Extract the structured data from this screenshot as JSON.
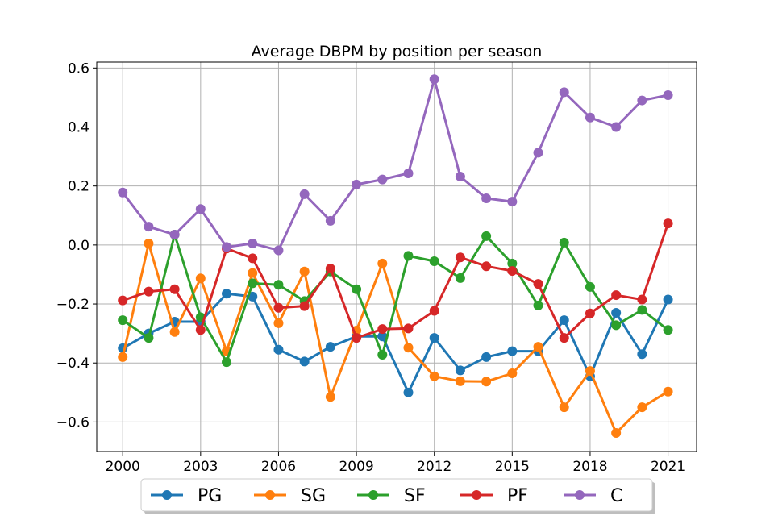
{
  "chart_data": {
    "type": "line",
    "title": "Average DBPM by position per season",
    "xlabel": "",
    "ylabel": "",
    "x": [
      2000,
      2001,
      2002,
      2003,
      2004,
      2005,
      2006,
      2007,
      2008,
      2009,
      2010,
      2011,
      2012,
      2013,
      2014,
      2015,
      2016,
      2017,
      2018,
      2019,
      2020,
      2021
    ],
    "xticks": [
      2000,
      2003,
      2006,
      2009,
      2012,
      2015,
      2018,
      2021
    ],
    "xtick_labels": [
      "2000",
      "2003",
      "2006",
      "2009",
      "2012",
      "2015",
      "2018",
      "2021"
    ],
    "yticks": [
      -0.6,
      -0.4,
      -0.2,
      0.0,
      0.2,
      0.4,
      0.6
    ],
    "ytick_labels": [
      "−0.6",
      "−0.4",
      "−0.2",
      "0.0",
      "0.2",
      "0.4",
      "0.6"
    ],
    "xlim": [
      1999,
      2022.1
    ],
    "ylim": [
      -0.7,
      0.62
    ],
    "grid": true,
    "legend_position": "bottom-center",
    "series": [
      {
        "name": "PG",
        "color": "#1f77b4",
        "values": [
          -0.35,
          -0.3,
          -0.26,
          -0.26,
          -0.165,
          -0.175,
          -0.355,
          -0.395,
          -0.345,
          -0.31,
          -0.31,
          -0.5,
          -0.315,
          -0.425,
          -0.38,
          -0.36,
          -0.36,
          -0.255,
          -0.445,
          -0.23,
          -0.37,
          -0.185
        ]
      },
      {
        "name": "SG",
        "color": "#ff7f0e",
        "values": [
          -0.38,
          0.005,
          -0.295,
          -0.113,
          -0.36,
          -0.095,
          -0.265,
          -0.09,
          -0.515,
          -0.29,
          -0.063,
          -0.348,
          -0.445,
          -0.462,
          -0.463,
          -0.435,
          -0.345,
          -0.55,
          -0.427,
          -0.637,
          -0.55,
          -0.497
        ]
      },
      {
        "name": "SF",
        "color": "#2ca02c",
        "values": [
          -0.255,
          -0.315,
          0.035,
          -0.245,
          -0.397,
          -0.13,
          -0.135,
          -0.19,
          -0.09,
          -0.15,
          -0.372,
          -0.037,
          -0.055,
          -0.112,
          0.03,
          -0.063,
          -0.205,
          0.008,
          -0.142,
          -0.272,
          -0.22,
          -0.288
        ]
      },
      {
        "name": "PF",
        "color": "#d62728",
        "values": [
          -0.188,
          -0.158,
          -0.15,
          -0.288,
          -0.012,
          -0.045,
          -0.213,
          -0.207,
          -0.08,
          -0.315,
          -0.285,
          -0.283,
          -0.223,
          -0.042,
          -0.072,
          -0.088,
          -0.132,
          -0.315,
          -0.232,
          -0.17,
          -0.185,
          0.073
        ]
      },
      {
        "name": "C",
        "color": "#9467bd",
        "values": [
          0.178,
          0.062,
          0.035,
          0.122,
          -0.007,
          0.005,
          -0.018,
          0.172,
          0.082,
          0.205,
          0.222,
          0.243,
          0.562,
          0.232,
          0.158,
          0.147,
          0.313,
          0.518,
          0.432,
          0.4,
          0.49,
          0.508
        ]
      }
    ]
  }
}
